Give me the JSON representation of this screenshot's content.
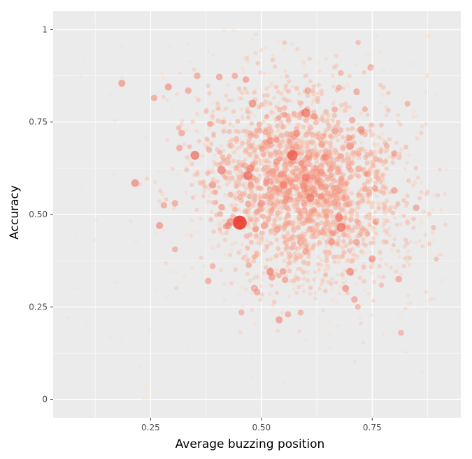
{
  "chart_data": {
    "type": "scatter",
    "title": "",
    "xlabel": "Average buzzing position",
    "ylabel": "Accuracy",
    "xlim": [
      0.03,
      0.95
    ],
    "ylim": [
      -0.05,
      1.05
    ],
    "x_ticks": [
      {
        "value": 0.25,
        "label": "0.25"
      },
      {
        "value": 0.5,
        "label": "0.50"
      },
      {
        "value": 0.75,
        "label": "0.75"
      }
    ],
    "y_ticks": [
      {
        "value": 0,
        "label": "0"
      },
      {
        "value": 0.25,
        "label": "0.25"
      },
      {
        "value": 0.5,
        "label": "0.50"
      },
      {
        "value": 0.75,
        "label": "0.75"
      },
      {
        "value": 1,
        "label": "1"
      }
    ],
    "grid": true,
    "legend": "none",
    "colors": {
      "panel": "#ebebeb",
      "grid": "#ffffff",
      "low": "#fdebd2",
      "high": "#e8261a"
    },
    "points": [
      [
        0.451,
        0.478,
        1.0
      ],
      [
        0.335,
        0.835,
        0.5
      ],
      [
        0.405,
        0.872,
        0.52
      ],
      [
        0.29,
        0.845,
        0.55
      ],
      [
        0.258,
        0.815,
        0.5
      ],
      [
        0.185,
        0.855,
        0.55
      ],
      [
        0.355,
        0.875,
        0.5
      ],
      [
        0.44,
        0.875,
        0.48
      ],
      [
        0.465,
        0.865,
        0.52
      ],
      [
        0.48,
        0.8,
        0.6
      ],
      [
        0.6,
        0.775,
        0.7
      ],
      [
        0.605,
        0.835,
        0.5
      ],
      [
        0.62,
        0.765,
        0.52
      ],
      [
        0.7,
        0.685,
        0.6
      ],
      [
        0.385,
        0.745,
        0.45
      ],
      [
        0.35,
        0.66,
        0.7
      ],
      [
        0.39,
        0.58,
        0.55
      ],
      [
        0.41,
        0.62,
        0.65
      ],
      [
        0.47,
        0.605,
        0.7
      ],
      [
        0.475,
        0.625,
        0.6
      ],
      [
        0.55,
        0.58,
        0.6
      ],
      [
        0.57,
        0.66,
        0.8
      ],
      [
        0.6,
        0.6,
        0.6
      ],
      [
        0.61,
        0.545,
        0.65
      ],
      [
        0.645,
        0.655,
        0.55
      ],
      [
        0.635,
        0.575,
        0.5
      ],
      [
        0.68,
        0.465,
        0.7
      ],
      [
        0.675,
        0.49,
        0.6
      ],
      [
        0.75,
        0.38,
        0.55
      ],
      [
        0.7,
        0.345,
        0.6
      ],
      [
        0.69,
        0.3,
        0.55
      ],
      [
        0.52,
        0.345,
        0.6
      ],
      [
        0.49,
        0.29,
        0.5
      ],
      [
        0.425,
        0.47,
        0.55
      ],
      [
        0.43,
        0.48,
        0.6
      ],
      [
        0.41,
        0.52,
        0.5
      ],
      [
        0.38,
        0.32,
        0.5
      ],
      [
        0.39,
        0.36,
        0.45
      ],
      [
        0.27,
        0.47,
        0.55
      ],
      [
        0.215,
        0.585,
        0.6
      ],
      [
        0.28,
        0.525,
        0.5
      ],
      [
        0.305,
        0.53,
        0.5
      ],
      [
        0.54,
        0.215,
        0.55
      ],
      [
        0.56,
        0.23,
        0.48
      ],
      [
        0.455,
        0.235,
        0.45
      ],
      [
        0.8,
        0.665,
        0.5
      ],
      [
        0.705,
        0.755,
        0.5
      ],
      [
        0.725,
        0.73,
        0.55
      ],
      [
        0.8,
        0.565,
        0.5
      ],
      [
        0.74,
        0.61,
        0.5
      ],
      [
        0.32,
        0.72,
        0.5
      ],
      [
        0.315,
        0.68,
        0.5
      ],
      [
        0.58,
        0.72,
        0.55
      ],
      [
        0.52,
        0.7,
        0.55
      ],
      [
        0.5,
        0.53,
        0.55
      ],
      [
        0.66,
        0.45,
        0.5
      ],
      [
        0.6,
        0.4,
        0.5
      ],
      [
        0.71,
        0.27,
        0.5
      ],
      [
        0.81,
        0.325,
        0.5
      ],
      [
        0.815,
        0.18,
        0.45
      ]
    ],
    "n_background_points": 2200,
    "seed": 7
  }
}
